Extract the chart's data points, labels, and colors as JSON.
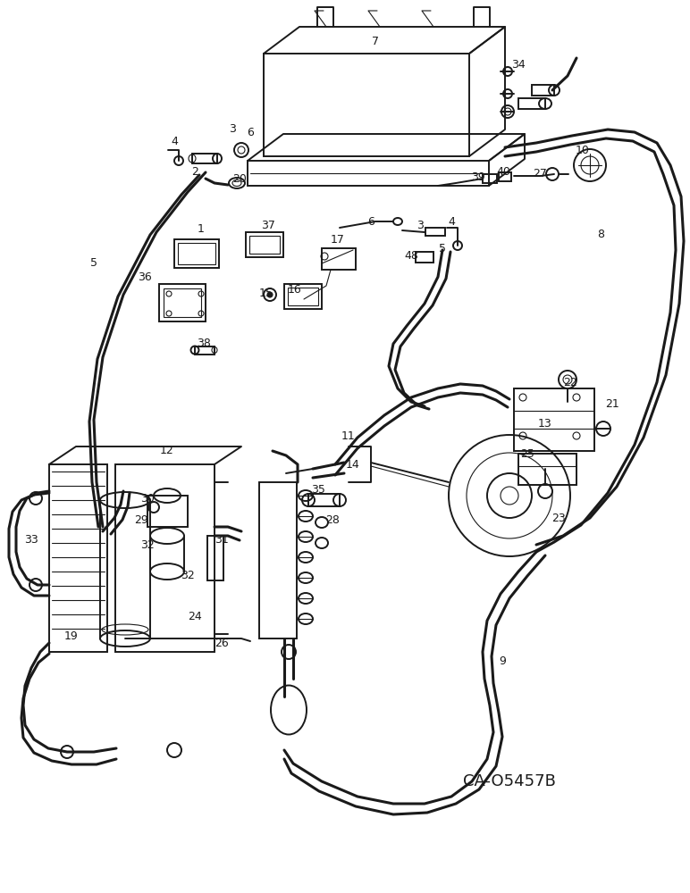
{
  "bg_color": "#ffffff",
  "line_color": "#1a1a1a",
  "fig_width": 7.72,
  "fig_height": 10.0,
  "dpi": 100,
  "watermark": "CA-O5457B"
}
